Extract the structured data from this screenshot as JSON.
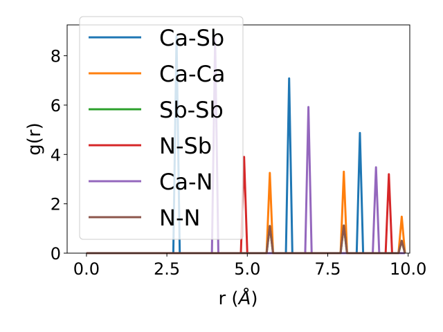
{
  "chart_data": {
    "type": "line",
    "xlabel": "r (",
    "xlabel_unit": "Å",
    "xlabel_close": ")",
    "ylabel": "g(r)",
    "xlim": [
      -0.6,
      10.05
    ],
    "ylim": [
      0,
      9.25
    ],
    "xticks": [
      0.0,
      2.5,
      5.0,
      7.5,
      10.0
    ],
    "xtick_labels": [
      "0.0",
      "2.5",
      "5.0",
      "7.5",
      "10.0"
    ],
    "yticks": [
      0,
      2,
      4,
      6,
      8
    ],
    "ytick_labels": [
      "0",
      "2",
      "4",
      "6",
      "8"
    ],
    "grid": false,
    "legend_position": "top-left",
    "series": [
      {
        "name": "Ca-Sb",
        "color": "#1f77b4",
        "peaks": [
          {
            "x": 2.8,
            "y": 8.8
          },
          {
            "x": 6.3,
            "y": 7.08
          },
          {
            "x": 8.5,
            "y": 4.87
          }
        ]
      },
      {
        "name": "Ca-Ca",
        "color": "#ff7f0e",
        "peaks": [
          {
            "x": 5.7,
            "y": 3.25
          },
          {
            "x": 8.0,
            "y": 3.3
          },
          {
            "x": 9.8,
            "y": 1.48
          }
        ]
      },
      {
        "name": "Sb-Sb",
        "color": "#2ca02c",
        "peaks": [
          {
            "x": 5.7,
            "y": 1.1
          },
          {
            "x": 8.0,
            "y": 1.12
          },
          {
            "x": 9.8,
            "y": 0.5
          }
        ]
      },
      {
        "name": "N-Sb",
        "color": "#d62728",
        "peaks": [
          {
            "x": 4.9,
            "y": 3.9
          },
          {
            "x": 9.4,
            "y": 3.2
          }
        ]
      },
      {
        "name": "Ca-N",
        "color": "#9467bd",
        "peaks": [
          {
            "x": 4.0,
            "y": 8.7
          },
          {
            "x": 6.9,
            "y": 5.92
          },
          {
            "x": 9.0,
            "y": 3.48
          }
        ]
      },
      {
        "name": "N-N",
        "color": "#8c564b",
        "peaks": [
          {
            "x": 5.7,
            "y": 1.1
          },
          {
            "x": 8.0,
            "y": 1.12
          },
          {
            "x": 9.8,
            "y": 0.5
          }
        ]
      }
    ]
  }
}
